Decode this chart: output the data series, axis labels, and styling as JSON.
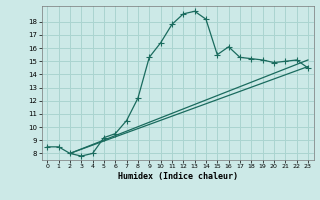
{
  "title": "",
  "xlabel": "Humidex (Indice chaleur)",
  "bg_color": "#cce9e7",
  "grid_color": "#aad4d0",
  "line_color": "#1a6b5e",
  "xlim": [
    -0.5,
    23.5
  ],
  "ylim": [
    7.5,
    19.2
  ],
  "xticks": [
    0,
    1,
    2,
    3,
    4,
    5,
    6,
    7,
    8,
    9,
    10,
    11,
    12,
    13,
    14,
    15,
    16,
    17,
    18,
    19,
    20,
    21,
    22,
    23
  ],
  "yticks": [
    8,
    9,
    10,
    11,
    12,
    13,
    14,
    15,
    16,
    17,
    18
  ],
  "line1_x": [
    0,
    1,
    2,
    3,
    4,
    5,
    6,
    7,
    8,
    9,
    10,
    11,
    12,
    13,
    14,
    15,
    16,
    17,
    18,
    19,
    20,
    21,
    22,
    23
  ],
  "line1_y": [
    8.5,
    8.5,
    8.0,
    7.8,
    8.0,
    9.2,
    9.5,
    10.5,
    12.2,
    15.3,
    16.4,
    17.8,
    18.6,
    18.8,
    18.2,
    15.5,
    16.1,
    15.3,
    15.2,
    15.1,
    14.9,
    15.0,
    15.1,
    14.5
  ],
  "line2_x": [
    2,
    23
  ],
  "line2_y": [
    8.0,
    14.6
  ],
  "line3_x": [
    2,
    23
  ],
  "line3_y": [
    8.0,
    15.1
  ],
  "marker": "+",
  "markersize": 4,
  "lw": 0.9
}
